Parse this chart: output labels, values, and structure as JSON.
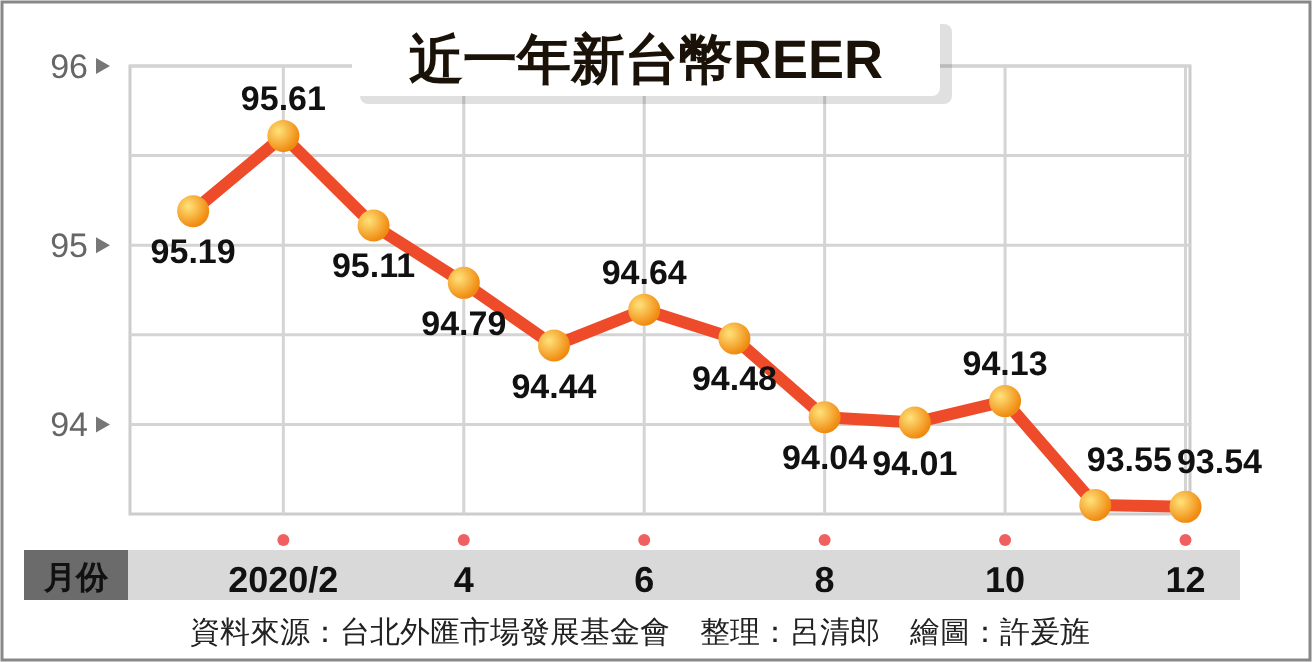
{
  "chart_data": {
    "type": "line",
    "title": "近一年新台幣REER",
    "xlabel": "月份",
    "categories": [
      null,
      "2020/2",
      null,
      "4",
      null,
      "6",
      null,
      "8",
      null,
      "10",
      null,
      "12"
    ],
    "series": [
      {
        "color": "#ee4b2b",
        "values": [
          95.19,
          95.61,
          95.11,
          94.79,
          94.44,
          94.64,
          94.48,
          94.04,
          94.01,
          94.13,
          93.55,
          93.54
        ]
      }
    ],
    "ylim": [
      93.5,
      96
    ],
    "yticks": [
      94,
      {
        "value": 94.5,
        "label": null
      },
      95,
      {
        "value": 95.5,
        "label": null
      },
      96
    ],
    "grid": true,
    "marker": "circle",
    "data_labels": true,
    "annotations": [
      "資料來源：台北外匯市場發展基金會　整理：呂清郎　繪圖：許爰旌"
    ]
  }
}
